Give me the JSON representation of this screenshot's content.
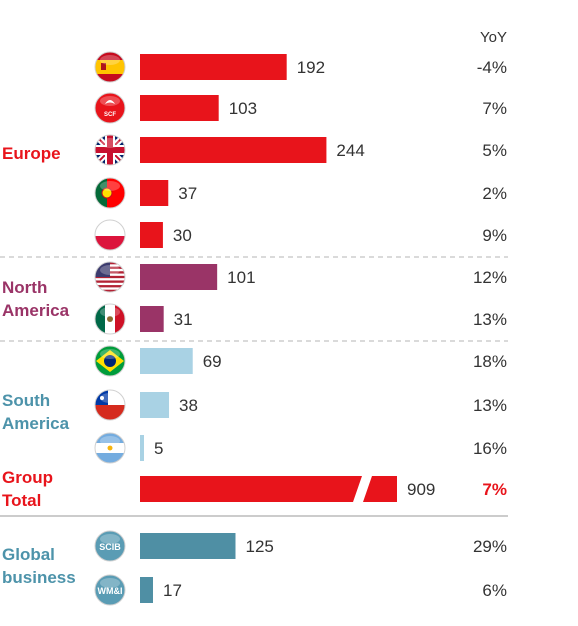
{
  "chart_data": {
    "type": "bar",
    "orientation": "horizontal",
    "yoy_header": "YoY",
    "colors": {
      "europe": "#e8141b",
      "north_america": "#9a3467",
      "south_america": "#a9d2e4",
      "group_total": "#e8141b",
      "global_business": "#4f8fa4",
      "group_label_europe": "#e8141b",
      "group_label_north_america": "#9a3467",
      "group_label_south_america": "#4d93aa",
      "group_label_group_total": "#e8141b",
      "group_label_global_business": "#4d93aa",
      "value_text": "#333333",
      "yoy_highlight": "#e8141b"
    },
    "groups": [
      {
        "id": "europe",
        "label": [
          "Europe"
        ],
        "rows": [
          {
            "icon": "spain-flag-icon",
            "value": 192,
            "value_label": "192",
            "yoy": "-4%"
          },
          {
            "icon": "scf-logo-icon",
            "icon_text": "SCF",
            "value": 103,
            "value_label": "103",
            "yoy": "7%"
          },
          {
            "icon": "uk-flag-icon",
            "value": 244,
            "value_label": "244",
            "yoy": "5%"
          },
          {
            "icon": "portugal-flag-icon",
            "value": 37,
            "value_label": "37",
            "yoy": "2%"
          },
          {
            "icon": "poland-flag-icon",
            "value": 30,
            "value_label": "30",
            "yoy": "9%"
          }
        ]
      },
      {
        "id": "north_america",
        "label": [
          "North",
          "America"
        ],
        "rows": [
          {
            "icon": "usa-flag-icon",
            "value": 101,
            "value_label": "101",
            "yoy": "12%"
          },
          {
            "icon": "mexico-flag-icon",
            "value": 31,
            "value_label": "31",
            "yoy": "13%"
          }
        ]
      },
      {
        "id": "south_america",
        "label": [
          "South",
          "America"
        ],
        "rows": [
          {
            "icon": "brazil-flag-icon",
            "value": 69,
            "value_label": "69",
            "yoy": "18%"
          },
          {
            "icon": "chile-flag-icon",
            "value": 38,
            "value_label": "38",
            "yoy": "13%"
          },
          {
            "icon": "argentina-flag-icon",
            "value": 5,
            "value_label": "5",
            "yoy": "16%"
          }
        ]
      },
      {
        "id": "group_total",
        "label": [
          "Group",
          "Total"
        ],
        "rows": [
          {
            "icon": "",
            "value": 909,
            "value_label": "909",
            "yoy": "7%",
            "broken_axis": true,
            "highlight": true
          }
        ]
      },
      {
        "id": "global_business",
        "label": [
          "Global",
          "business"
        ],
        "rows": [
          {
            "icon": "scib-logo-icon",
            "icon_text": "SCIB",
            "value": 125,
            "value_label": "125",
            "yoy": "29%"
          },
          {
            "icon": "wmi-logo-icon",
            "icon_text": "WM&I",
            "value": 17,
            "value_label": "17",
            "yoy": "6%"
          }
        ]
      }
    ]
  }
}
